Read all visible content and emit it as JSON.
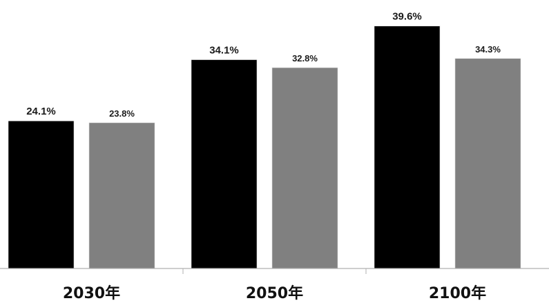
{
  "chart_data": {
    "type": "bar",
    "categories": [
      "2030年",
      "2050年",
      "2100年"
    ],
    "series": [
      {
        "values": [
          24.1,
          34.1,
          39.6
        ],
        "labels": [
          "24.1%",
          "34.1%",
          "39.6%"
        ]
      },
      {
        "values": [
          23.8,
          32.8,
          34.3
        ],
        "labels": [
          "23.8%",
          "32.8%",
          "34.3%"
        ]
      }
    ],
    "ylim": [
      0,
      45
    ],
    "grid": false,
    "colors": [
      "#000000",
      "#808080"
    ],
    "axis_color": "#b0b0b0"
  }
}
